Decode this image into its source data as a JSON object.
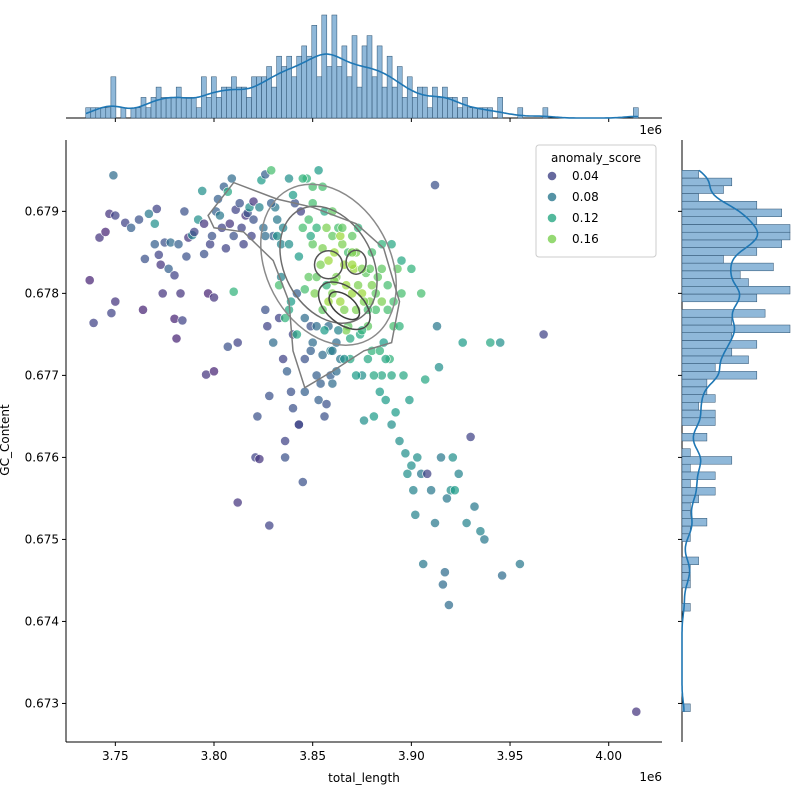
{
  "chart_data": {
    "type": "scatter",
    "title": "",
    "xlabel": "total_length",
    "ylabel": "GC_Content",
    "x_multiplier_label": "1e6",
    "xlim": [
      3.725,
      4.027
    ],
    "ylim": [
      0.67253,
      0.67987
    ],
    "xticks": [
      3.75,
      3.8,
      3.85,
      3.9,
      3.95,
      4.0
    ],
    "xtick_labels": [
      "3.75",
      "3.80",
      "3.85",
      "3.90",
      "3.95",
      "4.00"
    ],
    "yticks": [
      0.673,
      0.674,
      0.675,
      0.676,
      0.677,
      0.678,
      0.679
    ],
    "ytick_labels": [
      "0.673",
      "0.674",
      "0.675",
      "0.676",
      "0.677",
      "0.678",
      "0.679"
    ],
    "grid": false,
    "legend": {
      "title": "anomaly_score",
      "placement": "top-right",
      "entries": [
        {
          "label": "0.04",
          "value": 0.04
        },
        {
          "label": "0.08",
          "value": 0.08
        },
        {
          "label": "0.12",
          "value": 0.12
        },
        {
          "label": "0.16",
          "value": 0.16
        }
      ]
    },
    "color_scale": {
      "name": "viridis",
      "min": 0.0,
      "max": 0.2
    },
    "kde_density_centers": [
      {
        "x": 3.858,
        "y": 0.67835
      },
      {
        "x": 3.872,
        "y": 0.67838
      },
      {
        "x": 3.866,
        "y": 0.67785
      }
    ],
    "points": [
      [
        3.737,
        0.67816,
        0.02
      ],
      [
        3.739,
        0.67764,
        0.04
      ],
      [
        3.742,
        0.67868,
        0.03
      ],
      [
        3.745,
        0.67875,
        0.02
      ],
      [
        3.747,
        0.67897,
        0.03
      ],
      [
        3.748,
        0.67776,
        0.04
      ],
      [
        3.749,
        0.67944,
        0.07
      ],
      [
        3.75,
        0.6779,
        0.03
      ],
      [
        3.75,
        0.67895,
        0.04
      ],
      [
        3.755,
        0.67886,
        0.04
      ],
      [
        3.758,
        0.6788,
        0.06
      ],
      [
        3.762,
        0.6789,
        0.05
      ],
      [
        3.764,
        0.6778,
        0.02
      ],
      [
        3.765,
        0.67842,
        0.05
      ],
      [
        3.767,
        0.67897,
        0.08
      ],
      [
        3.77,
        0.67885,
        0.1
      ],
      [
        3.77,
        0.6786,
        0.06
      ],
      [
        3.771,
        0.67903,
        0.04
      ],
      [
        3.772,
        0.67847,
        0.04
      ],
      [
        3.773,
        0.67835,
        0.03
      ],
      [
        3.774,
        0.678,
        0.03
      ],
      [
        3.775,
        0.67862,
        0.05
      ],
      [
        3.777,
        0.6783,
        0.06
      ],
      [
        3.778,
        0.67862,
        0.07
      ],
      [
        3.78,
        0.67822,
        0.04
      ],
      [
        3.78,
        0.67769,
        0.02
      ],
      [
        3.781,
        0.67745,
        0.02
      ],
      [
        3.782,
        0.6786,
        0.06
      ],
      [
        3.783,
        0.678,
        0.03
      ],
      [
        3.784,
        0.67767,
        0.04
      ],
      [
        3.785,
        0.679,
        0.05
      ],
      [
        3.786,
        0.67845,
        0.05
      ],
      [
        3.787,
        0.67868,
        0.03
      ],
      [
        3.789,
        0.67871,
        0.09
      ],
      [
        3.79,
        0.67875,
        0.04
      ],
      [
        3.792,
        0.6789,
        0.1
      ],
      [
        3.794,
        0.67925,
        0.1
      ],
      [
        3.795,
        0.67848,
        0.05
      ],
      [
        3.795,
        0.67885,
        0.03
      ],
      [
        3.796,
        0.67701,
        0.03
      ],
      [
        3.797,
        0.678,
        0.02
      ],
      [
        3.798,
        0.6786,
        0.04
      ],
      [
        3.799,
        0.6787,
        0.05
      ],
      [
        3.8,
        0.67705,
        0.02
      ],
      [
        3.8,
        0.67795,
        0.03
      ],
      [
        3.801,
        0.679,
        0.06
      ],
      [
        3.802,
        0.67915,
        0.06
      ],
      [
        3.803,
        0.67895,
        0.08
      ],
      [
        3.804,
        0.6788,
        0.04
      ],
      [
        3.805,
        0.6793,
        0.06
      ],
      [
        3.806,
        0.67855,
        0.04
      ],
      [
        3.807,
        0.67924,
        0.12
      ],
      [
        3.807,
        0.67735,
        0.05
      ],
      [
        3.808,
        0.67885,
        0.03
      ],
      [
        3.809,
        0.6794,
        0.07
      ],
      [
        3.81,
        0.6787,
        0.05
      ],
      [
        3.81,
        0.67802,
        0.13
      ],
      [
        3.811,
        0.67902,
        0.04
      ],
      [
        3.812,
        0.6774,
        0.04
      ],
      [
        3.812,
        0.67545,
        0.03
      ],
      [
        3.813,
        0.6791,
        0.05
      ],
      [
        3.814,
        0.6788,
        0.04
      ],
      [
        3.815,
        0.6786,
        0.04
      ],
      [
        3.816,
        0.67895,
        0.03
      ],
      [
        3.817,
        0.67898,
        0.05
      ],
      [
        3.818,
        0.67905,
        0.1
      ],
      [
        3.819,
        0.6787,
        0.04
      ],
      [
        3.82,
        0.67912,
        0.03
      ],
      [
        3.82,
        0.6789,
        0.05
      ],
      [
        3.821,
        0.676,
        0.04
      ],
      [
        3.822,
        0.6765,
        0.05
      ],
      [
        3.823,
        0.67598,
        0.03
      ],
      [
        3.824,
        0.67938,
        0.11
      ],
      [
        3.825,
        0.6788,
        0.07
      ],
      [
        3.826,
        0.67945,
        0.06
      ],
      [
        3.826,
        0.6778,
        0.05
      ],
      [
        3.827,
        0.6776,
        0.04
      ],
      [
        3.828,
        0.67675,
        0.05
      ],
      [
        3.828,
        0.67517,
        0.04
      ],
      [
        3.829,
        0.6795,
        0.14
      ],
      [
        3.83,
        0.6787,
        0.06
      ],
      [
        3.83,
        0.6774,
        0.07
      ],
      [
        3.831,
        0.67905,
        0.08
      ],
      [
        3.832,
        0.6787,
        0.1
      ],
      [
        3.833,
        0.6777,
        0.04
      ],
      [
        3.834,
        0.6786,
        0.09
      ],
      [
        3.834,
        0.6782,
        0.09
      ],
      [
        3.835,
        0.6772,
        0.04
      ],
      [
        3.836,
        0.676,
        0.05
      ],
      [
        3.836,
        0.6762,
        0.04
      ],
      [
        3.837,
        0.67705,
        0.06
      ],
      [
        3.838,
        0.6794,
        0.1
      ],
      [
        3.838,
        0.6778,
        0.12
      ],
      [
        3.839,
        0.6768,
        0.05
      ],
      [
        3.84,
        0.6775,
        0.04
      ],
      [
        3.84,
        0.6766,
        0.05
      ],
      [
        3.841,
        0.6791,
        0.05
      ],
      [
        3.842,
        0.678,
        0.06
      ],
      [
        3.843,
        0.6764,
        0.05
      ],
      [
        3.843,
        0.6764,
        0.04
      ],
      [
        3.844,
        0.679,
        0.04
      ],
      [
        3.845,
        0.6757,
        0.05
      ],
      [
        3.845,
        0.6788,
        0.14
      ],
      [
        3.846,
        0.6772,
        0.05
      ],
      [
        3.846,
        0.6768,
        0.06
      ],
      [
        3.847,
        0.6794,
        0.13
      ],
      [
        3.848,
        0.6789,
        0.14
      ],
      [
        3.848,
        0.6782,
        0.15
      ],
      [
        3.849,
        0.6776,
        0.05
      ],
      [
        3.85,
        0.6793,
        0.14
      ],
      [
        3.85,
        0.6786,
        0.15
      ],
      [
        3.85,
        0.6774,
        0.07
      ],
      [
        3.851,
        0.678,
        0.16
      ],
      [
        3.852,
        0.6788,
        0.13
      ],
      [
        3.852,
        0.677,
        0.06
      ],
      [
        3.853,
        0.6767,
        0.06
      ],
      [
        3.853,
        0.6795,
        0.11
      ],
      [
        3.854,
        0.67835,
        0.16
      ],
      [
        3.855,
        0.6778,
        0.15
      ],
      [
        3.855,
        0.67725,
        0.07
      ],
      [
        3.856,
        0.679,
        0.12
      ],
      [
        3.856,
        0.6765,
        0.05
      ],
      [
        3.857,
        0.6788,
        0.16
      ],
      [
        3.857,
        0.6781,
        0.13
      ],
      [
        3.858,
        0.6784,
        0.17
      ],
      [
        3.858,
        0.6776,
        0.07
      ],
      [
        3.859,
        0.677,
        0.06
      ],
      [
        3.86,
        0.6787,
        0.15
      ],
      [
        3.86,
        0.678,
        0.16
      ],
      [
        3.86,
        0.6769,
        0.07
      ],
      [
        3.861,
        0.6785,
        0.17
      ],
      [
        3.862,
        0.6782,
        0.16
      ],
      [
        3.862,
        0.6774,
        0.07
      ],
      [
        3.863,
        0.6788,
        0.14
      ],
      [
        3.864,
        0.6779,
        0.17
      ],
      [
        3.864,
        0.6772,
        0.08
      ],
      [
        3.865,
        0.6786,
        0.16
      ],
      [
        3.866,
        0.67835,
        0.17
      ],
      [
        3.866,
        0.6778,
        0.16
      ],
      [
        3.867,
        0.6781,
        0.17
      ],
      [
        3.868,
        0.6776,
        0.15
      ],
      [
        3.868,
        0.6785,
        0.14
      ],
      [
        3.869,
        0.6772,
        0.12
      ],
      [
        3.87,
        0.678,
        0.17
      ],
      [
        3.87,
        0.6787,
        0.15
      ],
      [
        3.871,
        0.6783,
        0.17
      ],
      [
        3.872,
        0.6778,
        0.16
      ],
      [
        3.872,
        0.6785,
        0.16
      ],
      [
        3.873,
        0.6788,
        0.13
      ],
      [
        3.874,
        0.6775,
        0.12
      ],
      [
        3.875,
        0.678,
        0.17
      ],
      [
        3.875,
        0.677,
        0.1
      ],
      [
        3.876,
        0.67645,
        0.1
      ],
      [
        3.877,
        0.67825,
        0.15
      ],
      [
        3.878,
        0.6776,
        0.15
      ],
      [
        3.878,
        0.6772,
        0.12
      ],
      [
        3.879,
        0.6779,
        0.16
      ],
      [
        3.88,
        0.6781,
        0.16
      ],
      [
        3.88,
        0.6773,
        0.13
      ],
      [
        3.881,
        0.6765,
        0.11
      ],
      [
        3.882,
        0.6778,
        0.14
      ],
      [
        3.883,
        0.6782,
        0.15
      ],
      [
        3.884,
        0.6773,
        0.13
      ],
      [
        3.885,
        0.677,
        0.12
      ],
      [
        3.885,
        0.6779,
        0.16
      ],
      [
        3.886,
        0.6774,
        0.11
      ],
      [
        3.887,
        0.6767,
        0.11
      ],
      [
        3.888,
        0.6778,
        0.14
      ],
      [
        3.889,
        0.6772,
        0.13
      ],
      [
        3.89,
        0.677,
        0.12
      ],
      [
        3.89,
        0.6764,
        0.1
      ],
      [
        3.891,
        0.6776,
        0.14
      ],
      [
        3.892,
        0.67655,
        0.11
      ],
      [
        3.893,
        0.6783,
        0.15
      ],
      [
        3.894,
        0.6762,
        0.1
      ],
      [
        3.895,
        0.678,
        0.14
      ],
      [
        3.896,
        0.677,
        0.12
      ],
      [
        3.897,
        0.67605,
        0.1
      ],
      [
        3.898,
        0.6758,
        0.1
      ],
      [
        3.899,
        0.6767,
        0.11
      ],
      [
        3.9,
        0.6759,
        0.1
      ],
      [
        3.901,
        0.6756,
        0.09
      ],
      [
        3.902,
        0.6753,
        0.09
      ],
      [
        3.903,
        0.676,
        0.1
      ],
      [
        3.905,
        0.6758,
        0.08
      ],
      [
        3.906,
        0.6747,
        0.08
      ],
      [
        3.907,
        0.67695,
        0.12
      ],
      [
        3.908,
        0.6758,
        0.04
      ],
      [
        3.91,
        0.6756,
        0.08
      ],
      [
        3.912,
        0.6752,
        0.08
      ],
      [
        3.912,
        0.67932,
        0.05
      ],
      [
        3.913,
        0.6776,
        0.08
      ],
      [
        3.914,
        0.6771,
        0.1
      ],
      [
        3.915,
        0.676,
        0.08
      ],
      [
        3.916,
        0.67445,
        0.07
      ],
      [
        3.917,
        0.6746,
        0.07
      ],
      [
        3.918,
        0.6755,
        0.08
      ],
      [
        3.919,
        0.6742,
        0.07
      ],
      [
        3.92,
        0.6756,
        0.1
      ],
      [
        3.921,
        0.676,
        0.1
      ],
      [
        3.922,
        0.6756,
        0.11
      ],
      [
        3.924,
        0.6758,
        0.09
      ],
      [
        3.926,
        0.6774,
        0.11
      ],
      [
        3.928,
        0.6752,
        0.09
      ],
      [
        3.93,
        0.67625,
        0.04
      ],
      [
        3.932,
        0.6754,
        0.08
      ],
      [
        3.935,
        0.6751,
        0.09
      ],
      [
        3.937,
        0.675,
        0.08
      ],
      [
        3.94,
        0.6774,
        0.12
      ],
      [
        3.945,
        0.6774,
        0.1
      ],
      [
        3.946,
        0.67456,
        0.07
      ],
      [
        3.955,
        0.6747,
        0.08
      ],
      [
        3.967,
        0.6775,
        0.04
      ],
      [
        4.014,
        0.6729,
        0.03
      ],
      [
        3.843,
        0.67845,
        0.11
      ],
      [
        3.846,
        0.67805,
        0.14
      ],
      [
        3.849,
        0.6787,
        0.12
      ],
      [
        3.852,
        0.6782,
        0.15
      ],
      [
        3.855,
        0.67855,
        0.16
      ],
      [
        3.858,
        0.6779,
        0.17
      ],
      [
        3.861,
        0.67815,
        0.16
      ],
      [
        3.864,
        0.6787,
        0.17
      ],
      [
        3.867,
        0.67755,
        0.16
      ],
      [
        3.87,
        0.67835,
        0.17
      ],
      [
        3.873,
        0.6781,
        0.16
      ],
      [
        3.876,
        0.6779,
        0.16
      ],
      [
        3.879,
        0.6783,
        0.15
      ],
      [
        3.882,
        0.678,
        0.15
      ],
      [
        3.885,
        0.6783,
        0.15
      ],
      [
        3.888,
        0.6781,
        0.14
      ],
      [
        3.891,
        0.6779,
        0.14
      ],
      [
        3.894,
        0.6776,
        0.13
      ],
      [
        3.856,
        0.67755,
        0.11
      ],
      [
        3.859,
        0.6773,
        0.09
      ],
      [
        3.862,
        0.67705,
        0.07
      ],
      [
        3.852,
        0.6776,
        0.07
      ],
      [
        3.849,
        0.6773,
        0.06
      ],
      [
        3.846,
        0.6777,
        0.07
      ],
      [
        3.854,
        0.6769,
        0.06
      ],
      [
        3.857,
        0.67665,
        0.05
      ],
      [
        3.86,
        0.6773,
        0.08
      ],
      [
        3.863,
        0.67755,
        0.09
      ],
      [
        3.866,
        0.6772,
        0.1
      ],
      [
        3.869,
        0.67745,
        0.12
      ],
      [
        3.872,
        0.677,
        0.11
      ],
      [
        3.875,
        0.67755,
        0.13
      ],
      [
        3.878,
        0.6778,
        0.14
      ],
      [
        3.881,
        0.677,
        0.12
      ],
      [
        3.884,
        0.6768,
        0.11
      ],
      [
        3.887,
        0.6772,
        0.12
      ],
      [
        3.838,
        0.6786,
        0.1
      ],
      [
        3.835,
        0.6788,
        0.09
      ],
      [
        3.832,
        0.6789,
        0.08
      ],
      [
        3.829,
        0.6791,
        0.06
      ],
      [
        3.826,
        0.6787,
        0.07
      ],
      [
        3.823,
        0.67905,
        0.09
      ],
      [
        3.84,
        0.6792,
        0.11
      ],
      [
        3.845,
        0.6794,
        0.13
      ],
      [
        3.85,
        0.6791,
        0.14
      ],
      [
        3.855,
        0.6793,
        0.14
      ],
      [
        3.86,
        0.679,
        0.15
      ],
      [
        3.865,
        0.6788,
        0.15
      ],
      [
        3.87,
        0.6785,
        0.16
      ],
      [
        3.875,
        0.6783,
        0.16
      ],
      [
        3.88,
        0.6785,
        0.14
      ],
      [
        3.885,
        0.6786,
        0.13
      ],
      [
        3.89,
        0.6786,
        0.12
      ],
      [
        3.895,
        0.6784,
        0.12
      ],
      [
        3.9,
        0.6783,
        0.13
      ],
      [
        3.905,
        0.678,
        0.14
      ],
      [
        3.842,
        0.6775,
        0.12
      ],
      [
        3.839,
        0.6779,
        0.11
      ],
      [
        3.836,
        0.6777,
        0.13
      ],
      [
        3.833,
        0.6781,
        0.14
      ]
    ],
    "marginal_x": {
      "type": "histogram-with-kde",
      "bin_edges_range": [
        3.735,
        4.015
      ],
      "kde_peaks": [
        3.828,
        3.858,
        3.872
      ]
    },
    "marginal_y": {
      "type": "histogram-with-kde",
      "bin_edges_range": [
        0.6729,
        0.6795
      ],
      "kde_peaks": [
        0.67835,
        0.6777
      ]
    }
  }
}
